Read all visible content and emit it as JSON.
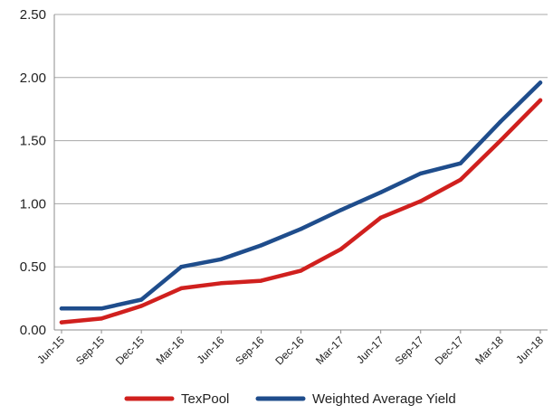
{
  "chart_data": {
    "type": "line",
    "title": "",
    "xlabel": "",
    "ylabel": "",
    "ylim": [
      0,
      2.5
    ],
    "yticks": [
      "0.00",
      "0.50",
      "1.00",
      "1.50",
      "2.00",
      "2.50"
    ],
    "categories": [
      "Jun-15",
      "Sep-15",
      "Dec-15",
      "Mar-16",
      "Jun-16",
      "Sep-16",
      "Dec-16",
      "Mar-17",
      "Jun-17",
      "Sep-17",
      "Dec-17",
      "Mar-18",
      "Jun-18"
    ],
    "grid": true,
    "legend_position": "bottom",
    "series": [
      {
        "name": "TexPool",
        "color": "#d0201e",
        "values": [
          0.06,
          0.09,
          0.19,
          0.33,
          0.37,
          0.39,
          0.47,
          0.64,
          0.89,
          1.02,
          1.19,
          1.5,
          1.82
        ]
      },
      {
        "name": "Weighted Average Yield",
        "color": "#1f4d8c",
        "values": [
          0.17,
          0.17,
          0.24,
          0.5,
          0.56,
          0.67,
          0.8,
          0.95,
          1.09,
          1.24,
          1.32,
          1.65,
          1.96
        ]
      }
    ]
  }
}
